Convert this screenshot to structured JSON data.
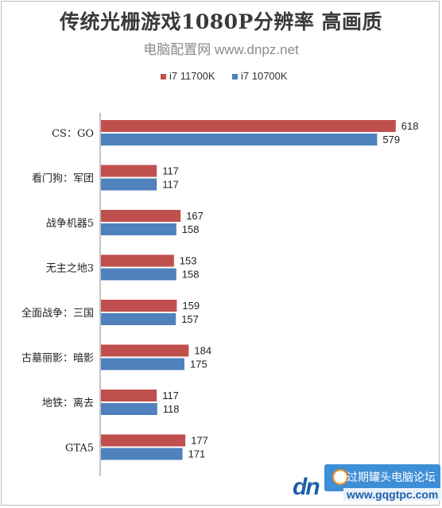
{
  "chart_data": {
    "type": "bar",
    "orientation": "horizontal",
    "title": "传统光栅游戏1080P分辨率 高画质",
    "subtitle": "电脑配置网 www.dnpz.net",
    "categories": [
      "CS：GO",
      "看门狗：军团",
      "战争机器5",
      "无主之地3",
      "全面战争：三国",
      "古墓丽影：暗影",
      "地铁：离去",
      "GTA5"
    ],
    "series": [
      {
        "name": "i7 11700K",
        "color": "#c0504d",
        "values": [
          618,
          117,
          167,
          153,
          159,
          184,
          117,
          177
        ]
      },
      {
        "name": "i7 10700K",
        "color": "#4f81bd",
        "values": [
          579,
          117,
          158,
          158,
          157,
          175,
          118,
          171
        ]
      }
    ],
    "xlim": [
      0,
      700
    ],
    "legend_position": "top",
    "grid": false,
    "data_labels": true
  },
  "watermark": {
    "logo": "dn",
    "text": "过期罐头电脑论坛",
    "url": "www.gqgtpc.com"
  }
}
